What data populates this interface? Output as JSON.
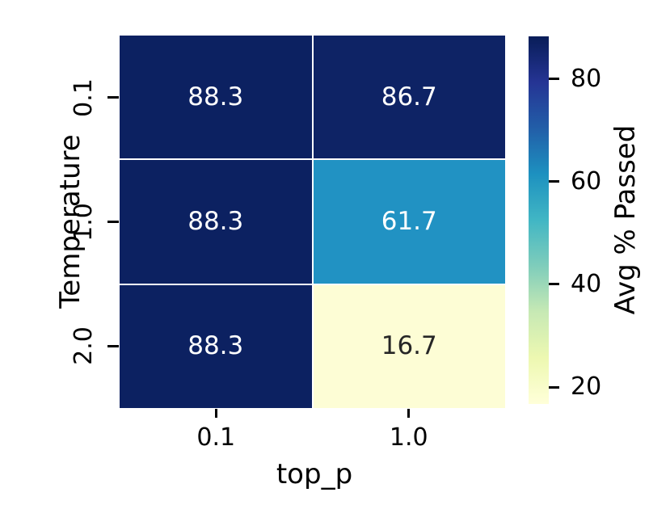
{
  "chart_data": {
    "type": "heatmap",
    "title": "",
    "xlabel": "top_p",
    "ylabel": "Temperature",
    "x_categories": [
      "0.1",
      "1.0"
    ],
    "y_categories": [
      "0.1",
      "1.0",
      "2.0"
    ],
    "values": [
      [
        88.3,
        86.7
      ],
      [
        88.3,
        61.7
      ],
      [
        88.3,
        16.7
      ]
    ],
    "cells": [
      {
        "row": "0.1",
        "col": "0.1",
        "label": "88.3",
        "bg": "#0c2161",
        "fg": "#ffffff"
      },
      {
        "row": "0.1",
        "col": "1.0",
        "label": "86.7",
        "bg": "#0e2365",
        "fg": "#ffffff"
      },
      {
        "row": "1.0",
        "col": "0.1",
        "label": "88.3",
        "bg": "#0c2161",
        "fg": "#ffffff"
      },
      {
        "row": "1.0",
        "col": "1.0",
        "label": "61.7",
        "bg": "#2192c3",
        "fg": "#ffffff"
      },
      {
        "row": "2.0",
        "col": "0.1",
        "label": "88.3",
        "bg": "#0c2161",
        "fg": "#ffffff"
      },
      {
        "row": "2.0",
        "col": "1.0",
        "label": "16.7",
        "bg": "#fdfdd5",
        "fg": "#262626"
      }
    ],
    "grid_line_color": "#ffffff",
    "legend_position": "right",
    "colorbar": {
      "label": "Avg % Passed",
      "vmin": 16.7,
      "vmax": 88.3,
      "ticks": [
        {
          "label": "80",
          "value": 80
        },
        {
          "label": "60",
          "value": 60
        },
        {
          "label": "40",
          "value": 40
        },
        {
          "label": "20",
          "value": 20
        }
      ],
      "gradient_stops": [
        "#ffffd9",
        "#edf8b1",
        "#c7e9b4",
        "#7fcdbb",
        "#41b6c4",
        "#1d91c0",
        "#225ea8",
        "#253494",
        "#081d58"
      ]
    }
  }
}
